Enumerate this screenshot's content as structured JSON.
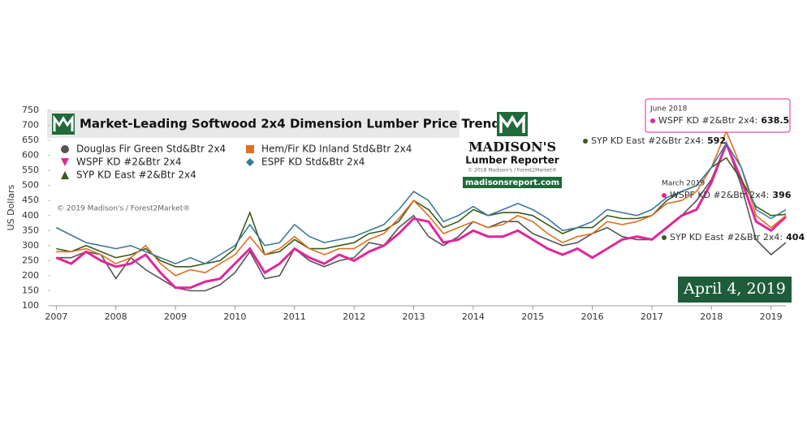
{
  "chart_data": {
    "type": "line",
    "title": "Market-Leading Softwood 2x4 Dimension Lumber Price Trends",
    "y_label": "US Dollars",
    "x": [
      2007,
      2007.25,
      2007.5,
      2007.75,
      2008,
      2008.25,
      2008.5,
      2008.75,
      2009,
      2009.25,
      2009.5,
      2009.75,
      2010,
      2010.25,
      2010.5,
      2010.75,
      2011,
      2011.25,
      2011.5,
      2011.75,
      2012,
      2012.25,
      2012.5,
      2012.75,
      2013,
      2013.25,
      2013.5,
      2013.75,
      2014,
      2014.25,
      2014.5,
      2014.75,
      2015,
      2015.25,
      2015.5,
      2015.75,
      2016,
      2016.25,
      2016.5,
      2016.75,
      2017,
      2017.25,
      2017.5,
      2017.75,
      2018,
      2018.25,
      2018.5,
      2018.75,
      2019,
      2019.25
    ],
    "series": [
      {
        "name": "Douglas Fir Green Std&Btr 2x4",
        "color": "#555555",
        "marker": "circle",
        "values": [
          260,
          260,
          280,
          270,
          190,
          260,
          220,
          190,
          160,
          150,
          150,
          170,
          210,
          280,
          190,
          200,
          290,
          250,
          230,
          250,
          260,
          310,
          300,
          360,
          400,
          330,
          300,
          330,
          380,
          360,
          380,
          380,
          340,
          320,
          300,
          310,
          340,
          360,
          330,
          320,
          320,
          360,
          400,
          450,
          520,
          640,
          500,
          320,
          270,
          310
        ]
      },
      {
        "name": "WSPF KD #2&Btr 2x4",
        "color": "#e0279a",
        "marker": "triangle-down",
        "values": [
          260,
          240,
          280,
          250,
          230,
          240,
          270,
          210,
          160,
          160,
          180,
          190,
          240,
          290,
          210,
          240,
          290,
          260,
          240,
          270,
          250,
          280,
          300,
          340,
          390,
          380,
          310,
          320,
          350,
          330,
          330,
          350,
          320,
          290,
          270,
          290,
          260,
          290,
          320,
          330,
          320,
          360,
          400,
          420,
          510,
          638.5,
          520,
          380,
          350,
          396
        ]
      },
      {
        "name": "SYP KD East #2&Btr 2x4",
        "color": "#3d5a1a",
        "marker": "triangle-up",
        "values": [
          290,
          280,
          300,
          280,
          260,
          270,
          290,
          250,
          230,
          230,
          240,
          250,
          290,
          410,
          270,
          280,
          320,
          290,
          290,
          300,
          310,
          340,
          350,
          380,
          450,
          420,
          360,
          380,
          420,
          400,
          410,
          410,
          400,
          370,
          340,
          360,
          360,
          400,
          390,
          390,
          400,
          450,
          480,
          500,
          560,
          592,
          520,
          430,
          400,
          404
        ]
      },
      {
        "name": "Hem/Fir KD Inland Std&Btr 2x4",
        "color": "#e07020",
        "marker": "square",
        "values": [
          280,
          280,
          290,
          270,
          240,
          260,
          300,
          240,
          200,
          220,
          210,
          240,
          270,
          330,
          270,
          290,
          330,
          290,
          270,
          290,
          290,
          320,
          340,
          390,
          450,
          400,
          340,
          360,
          380,
          360,
          370,
          400,
          380,
          340,
          310,
          330,
          340,
          380,
          370,
          380,
          400,
          440,
          450,
          480,
          560,
          680,
          560,
          400,
          360,
          400
        ]
      },
      {
        "name": "ESPF KD Std&Btr 2x4",
        "color": "#3a7a9a",
        "marker": "diamond",
        "values": [
          360,
          335,
          310,
          300,
          290,
          300,
          280,
          260,
          240,
          260,
          240,
          270,
          300,
          370,
          300,
          310,
          370,
          330,
          310,
          320,
          330,
          350,
          370,
          420,
          480,
          450,
          380,
          400,
          430,
          400,
          420,
          440,
          420,
          390,
          350,
          360,
          380,
          420,
          410,
          400,
          420,
          460,
          480,
          500,
          560,
          640,
          560,
          420,
          390,
          420
        ]
      }
    ],
    "xlim": [
      2006.9,
      2019.25
    ],
    "xticks": [
      2007,
      2008,
      2009,
      2010,
      2011,
      2012,
      2013,
      2014,
      2015,
      2016,
      2017,
      2018,
      2019
    ],
    "ylim": [
      100,
      750
    ],
    "yticks": [
      100,
      150,
      200,
      250,
      300,
      350,
      400,
      450,
      500,
      550,
      600,
      650,
      700,
      750
    ],
    "annotations": [
      "© 2019 Madison's / Forest2Market®",
      "MADISON'S",
      "Lumber Reporter",
      "© 2018 Madison's / Forest2Market®",
      "madisonsreport.com",
      "April 4, 2019"
    ],
    "tooltips": [
      {
        "date": "June 2018",
        "label": "WSPF KD #2&Btr 2x4:",
        "value": 638.5
      },
      {
        "label": "SYP KD East #2&Btr 2x4:",
        "value": 592
      },
      {
        "date": "March 2019",
        "label": "WSPF KD #2&Btr 2x4:",
        "value": 396
      },
      {
        "label": "SYP KD East #2&Btr 2x4:",
        "value": 404
      }
    ]
  }
}
